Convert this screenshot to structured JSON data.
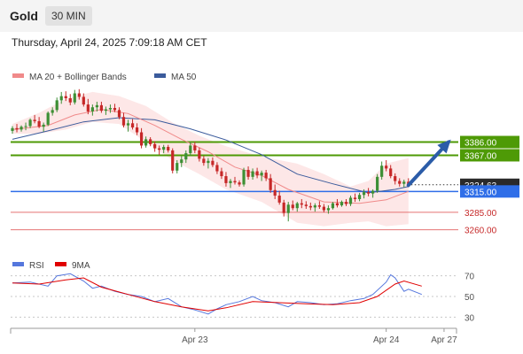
{
  "header": {
    "symbol": "Gold",
    "timeframe": "30 MIN",
    "datetime": "Thursday, April 24, 2025 7:09:18 AM CET"
  },
  "colors": {
    "up": "#3d8f35",
    "down": "#c62828",
    "bollinger_fill": "#fde3e3",
    "ma20": "#f08a8a",
    "ma50": "#3b5b9c",
    "green_level": "#4e9a06",
    "blue_level": "#2f6ee8",
    "red_level": "#e57373",
    "rsi": "#5577dd",
    "rsi_ma": "#e00000",
    "arrow": "#2b5ca8"
  },
  "chart_data": [
    {
      "type": "candlestick",
      "legend": [
        {
          "label": "MA 20 + Bollinger Bands",
          "color": "#f08a8a"
        },
        {
          "label": "MA 50",
          "color": "#3b5b9c"
        }
      ],
      "ylim": [
        3234,
        3463
      ],
      "x_ticks": [
        {
          "label": "Apr 23",
          "index": 41
        },
        {
          "label": "Apr 24",
          "index": 84
        },
        {
          "label": "Apr 27",
          "index": 97
        }
      ],
      "price_levels": [
        {
          "label": "3386.00",
          "value": 3386,
          "color": "#4e9a06",
          "kind": "resistance"
        },
        {
          "label": "3367.00",
          "value": 3367,
          "color": "#4e9a06",
          "kind": "resistance"
        },
        {
          "label": "3315.00",
          "value": 3315,
          "color": "#2f6ee8",
          "kind": "pivot"
        },
        {
          "label": "3285.00",
          "value": 3285,
          "color": "#e57373",
          "kind": "support"
        },
        {
          "label": "3260.00",
          "value": 3260,
          "color": "#e57373",
          "kind": "support"
        }
      ],
      "current_price": {
        "label": "3324.63",
        "value": 3324.63
      },
      "candles": [
        [
          3402,
          3409,
          3398,
          3406
        ],
        [
          3406,
          3412,
          3400,
          3404
        ],
        [
          3404,
          3410,
          3401,
          3408
        ],
        [
          3408,
          3414,
          3403,
          3409
        ],
        [
          3409,
          3420,
          3406,
          3418
        ],
        [
          3418,
          3425,
          3413,
          3416
        ],
        [
          3416,
          3422,
          3406,
          3408
        ],
        [
          3408,
          3414,
          3401,
          3411
        ],
        [
          3411,
          3430,
          3409,
          3428
        ],
        [
          3428,
          3436,
          3424,
          3432
        ],
        [
          3432,
          3450,
          3429,
          3446
        ],
        [
          3446,
          3458,
          3441,
          3452
        ],
        [
          3452,
          3459,
          3445,
          3449
        ],
        [
          3449,
          3455,
          3439,
          3443
        ],
        [
          3443,
          3461,
          3440,
          3456
        ],
        [
          3456,
          3462,
          3447,
          3451
        ],
        [
          3451,
          3456,
          3437,
          3440
        ],
        [
          3440,
          3448,
          3426,
          3430
        ],
        [
          3430,
          3440,
          3424,
          3436
        ],
        [
          3436,
          3444,
          3430,
          3439
        ],
        [
          3439,
          3444,
          3428,
          3431
        ],
        [
          3431,
          3437,
          3425,
          3433
        ],
        [
          3433,
          3440,
          3428,
          3435
        ],
        [
          3435,
          3441,
          3429,
          3432
        ],
        [
          3432,
          3436,
          3419,
          3422
        ],
        [
          3422,
          3428,
          3407,
          3410
        ],
        [
          3410,
          3418,
          3401,
          3413
        ],
        [
          3413,
          3419,
          3404,
          3407
        ],
        [
          3407,
          3413,
          3396,
          3400
        ],
        [
          3400,
          3406,
          3377,
          3381
        ],
        [
          3381,
          3394,
          3378,
          3390
        ],
        [
          3390,
          3393,
          3380,
          3383
        ],
        [
          3383,
          3387,
          3372,
          3377
        ],
        [
          3377,
          3381,
          3368,
          3375
        ],
        [
          3375,
          3382,
          3370,
          3379
        ],
        [
          3379,
          3382,
          3371,
          3374
        ],
        [
          3374,
          3377,
          3341,
          3345
        ],
        [
          3345,
          3360,
          3341,
          3356
        ],
        [
          3356,
          3366,
          3350,
          3361
        ],
        [
          3361,
          3374,
          3356,
          3370
        ],
        [
          3370,
          3386,
          3366,
          3381
        ],
        [
          3381,
          3386,
          3370,
          3374
        ],
        [
          3374,
          3378,
          3358,
          3362
        ],
        [
          3362,
          3366,
          3352,
          3356
        ],
        [
          3356,
          3363,
          3348,
          3359
        ],
        [
          3359,
          3364,
          3350,
          3353
        ],
        [
          3353,
          3357,
          3340,
          3344
        ],
        [
          3344,
          3349,
          3333,
          3337
        ],
        [
          3337,
          3343,
          3322,
          3327
        ],
        [
          3327,
          3333,
          3320,
          3330
        ],
        [
          3330,
          3336,
          3325,
          3328
        ],
        [
          3328,
          3331,
          3322,
          3325
        ],
        [
          3325,
          3349,
          3322,
          3346
        ],
        [
          3346,
          3351,
          3332,
          3336
        ],
        [
          3336,
          3348,
          3332,
          3344
        ],
        [
          3344,
          3349,
          3334,
          3338
        ],
        [
          3338,
          3345,
          3330,
          3342
        ],
        [
          3342,
          3346,
          3330,
          3334
        ],
        [
          3334,
          3340,
          3313,
          3317
        ],
        [
          3317,
          3325,
          3304,
          3309
        ],
        [
          3309,
          3316,
          3296,
          3299
        ],
        [
          3299,
          3303,
          3279,
          3284
        ],
        [
          3284,
          3300,
          3272,
          3296
        ],
        [
          3296,
          3302,
          3288,
          3291
        ],
        [
          3291,
          3300,
          3286,
          3298
        ],
        [
          3298,
          3304,
          3291,
          3296
        ],
        [
          3296,
          3301,
          3290,
          3294
        ],
        [
          3294,
          3299,
          3288,
          3292
        ],
        [
          3292,
          3298,
          3286,
          3295
        ],
        [
          3295,
          3301,
          3290,
          3293
        ],
        [
          3293,
          3297,
          3285,
          3288
        ],
        [
          3288,
          3295,
          3283,
          3291
        ],
        [
          3291,
          3300,
          3289,
          3298
        ],
        [
          3298,
          3304,
          3292,
          3295
        ],
        [
          3295,
          3302,
          3293,
          3300
        ],
        [
          3300,
          3304,
          3294,
          3297
        ],
        [
          3297,
          3309,
          3294,
          3306
        ],
        [
          3306,
          3312,
          3300,
          3304
        ],
        [
          3304,
          3313,
          3301,
          3310
        ],
        [
          3310,
          3318,
          3305,
          3314
        ],
        [
          3314,
          3320,
          3308,
          3312
        ],
        [
          3312,
          3318,
          3306,
          3316
        ],
        [
          3316,
          3340,
          3313,
          3336
        ],
        [
          3336,
          3358,
          3332,
          3352
        ],
        [
          3352,
          3360,
          3344,
          3348
        ],
        [
          3348,
          3353,
          3334,
          3337
        ],
        [
          3337,
          3341,
          3325,
          3330
        ],
        [
          3330,
          3334,
          3322,
          3326
        ],
        [
          3326,
          3332,
          3321,
          3329
        ],
        [
          3329,
          3334,
          3321,
          3325
        ]
      ],
      "ma20": [
        [
          0,
          3404
        ],
        [
          8,
          3410
        ],
        [
          14,
          3425
        ],
        [
          20,
          3433
        ],
        [
          26,
          3427
        ],
        [
          32,
          3410
        ],
        [
          38,
          3390
        ],
        [
          44,
          3372
        ],
        [
          50,
          3350
        ],
        [
          56,
          3338
        ],
        [
          62,
          3318
        ],
        [
          70,
          3300
        ],
        [
          78,
          3298
        ],
        [
          84,
          3303
        ],
        [
          89,
          3315
        ]
      ],
      "bollinger_upper": [
        [
          0,
          3412
        ],
        [
          6,
          3428
        ],
        [
          12,
          3448
        ],
        [
          18,
          3458
        ],
        [
          24,
          3452
        ],
        [
          30,
          3438
        ],
        [
          36,
          3414
        ],
        [
          42,
          3395
        ],
        [
          48,
          3380
        ],
        [
          56,
          3365
        ],
        [
          64,
          3355
        ],
        [
          70,
          3340
        ],
        [
          76,
          3322
        ],
        [
          80,
          3330
        ],
        [
          84,
          3355
        ],
        [
          89,
          3363
        ]
      ],
      "bollinger_lower": [
        [
          0,
          3398
        ],
        [
          6,
          3398
        ],
        [
          12,
          3404
        ],
        [
          18,
          3415
        ],
        [
          24,
          3412
        ],
        [
          30,
          3386
        ],
        [
          36,
          3360
        ],
        [
          42,
          3340
        ],
        [
          48,
          3318
        ],
        [
          56,
          3300
        ],
        [
          64,
          3270
        ],
        [
          70,
          3265
        ],
        [
          76,
          3270
        ],
        [
          80,
          3272
        ],
        [
          84,
          3265
        ],
        [
          89,
          3268
        ]
      ],
      "ma50": [
        [
          0,
          3390
        ],
        [
          8,
          3402
        ],
        [
          16,
          3415
        ],
        [
          24,
          3421
        ],
        [
          32,
          3418
        ],
        [
          40,
          3405
        ],
        [
          48,
          3389
        ],
        [
          56,
          3368
        ],
        [
          64,
          3340
        ],
        [
          72,
          3326
        ],
        [
          80,
          3313
        ],
        [
          86,
          3318
        ],
        [
          89,
          3322
        ]
      ],
      "projection": {
        "from": [
          89,
          3324
        ],
        "to": [
          98,
          3386
        ]
      }
    },
    {
      "type": "line",
      "series": [
        {
          "name": "RSI",
          "color": "#5577dd"
        },
        {
          "name": "9MA",
          "color": "#e00000"
        }
      ],
      "ylim": [
        20,
        80
      ],
      "y_ticks": [
        70,
        50,
        30
      ],
      "rsi": [
        [
          0,
          63
        ],
        [
          4,
          64
        ],
        [
          8,
          60
        ],
        [
          10,
          70
        ],
        [
          13,
          72
        ],
        [
          16,
          65
        ],
        [
          18,
          58
        ],
        [
          20,
          60
        ],
        [
          23,
          55
        ],
        [
          26,
          52
        ],
        [
          29,
          50
        ],
        [
          32,
          45
        ],
        [
          35,
          48
        ],
        [
          38,
          40
        ],
        [
          41,
          37
        ],
        [
          44,
          33
        ],
        [
          46,
          38
        ],
        [
          48,
          42
        ],
        [
          51,
          45
        ],
        [
          54,
          50
        ],
        [
          56,
          46
        ],
        [
          59,
          44
        ],
        [
          62,
          40
        ],
        [
          64,
          45
        ],
        [
          67,
          44
        ],
        [
          70,
          42
        ],
        [
          73,
          43
        ],
        [
          76,
          46
        ],
        [
          79,
          48
        ],
        [
          81,
          52
        ],
        [
          84,
          64
        ],
        [
          85,
          71
        ],
        [
          86,
          68
        ],
        [
          88,
          55
        ],
        [
          89,
          57
        ],
        [
          92,
          52
        ]
      ],
      "rsi_ma": [
        [
          0,
          63
        ],
        [
          6,
          62
        ],
        [
          12,
          66
        ],
        [
          16,
          68
        ],
        [
          20,
          59
        ],
        [
          26,
          52
        ],
        [
          32,
          45
        ],
        [
          38,
          40
        ],
        [
          44,
          36
        ],
        [
          48,
          39
        ],
        [
          54,
          45
        ],
        [
          60,
          44
        ],
        [
          66,
          43
        ],
        [
          72,
          42
        ],
        [
          78,
          44
        ],
        [
          82,
          50
        ],
        [
          86,
          62
        ],
        [
          88,
          65
        ],
        [
          92,
          60
        ]
      ]
    }
  ]
}
